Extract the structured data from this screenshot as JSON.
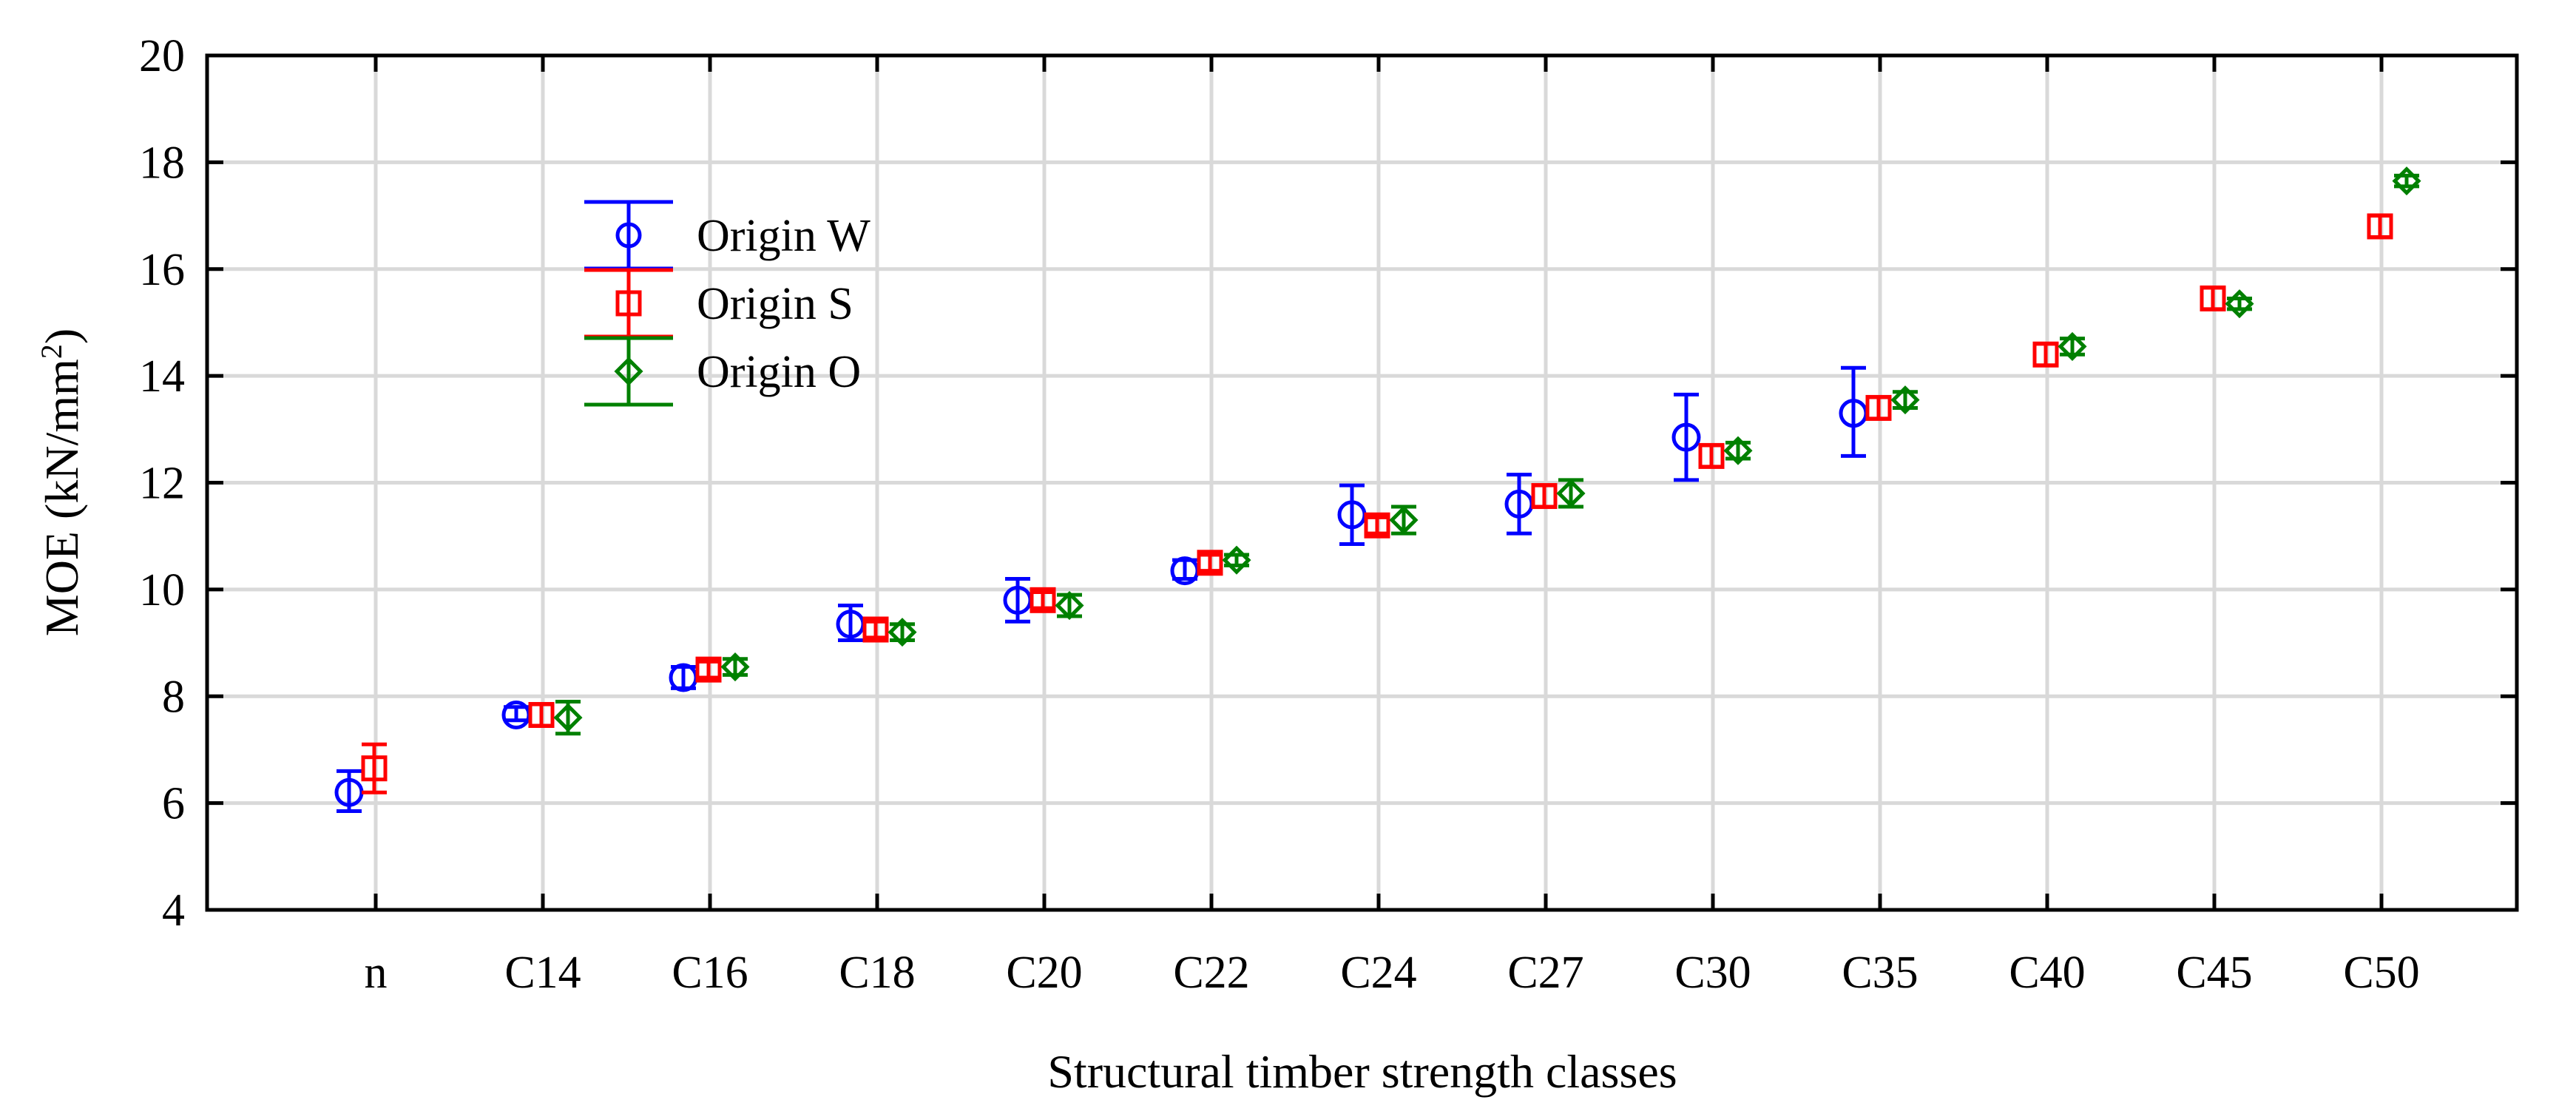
{
  "chart_data": {
    "type": "scatter",
    "subtype": "mean-with-error-bars",
    "xlabel": "Structural timber strength classes",
    "ylabel": "MOE (kN/mm",
    "ylabel_sup": "2",
    "ylabel_end": ")",
    "ylim": [
      4,
      20
    ],
    "yticks": [
      4,
      6,
      8,
      10,
      12,
      14,
      16,
      18,
      20
    ],
    "grid": true,
    "legend_position": "top-left",
    "categories": [
      "n",
      "C14",
      "C16",
      "C18",
      "C20",
      "C22",
      "C24",
      "C27",
      "C30",
      "C35",
      "C40",
      "C45",
      "C50"
    ],
    "series": [
      {
        "name": "Origin W",
        "color": "#0000ff",
        "marker": "circle",
        "values": [
          6.2,
          7.65,
          8.35,
          9.35,
          9.8,
          10.35,
          11.4,
          11.6,
          12.85,
          13.3,
          null,
          null,
          null
        ],
        "lower": [
          5.85,
          7.55,
          8.15,
          9.05,
          9.4,
          10.2,
          10.85,
          11.05,
          12.05,
          12.5,
          null,
          null,
          null
        ],
        "upper": [
          6.6,
          7.8,
          8.55,
          9.7,
          10.2,
          10.55,
          11.95,
          12.15,
          13.65,
          14.15,
          null,
          null,
          null
        ]
      },
      {
        "name": "Origin S",
        "color": "#ff0000",
        "marker": "square",
        "values": [
          6.65,
          7.65,
          8.5,
          9.25,
          9.8,
          10.5,
          11.2,
          11.75,
          12.5,
          13.4,
          14.4,
          15.45,
          16.8
        ],
        "lower": [
          6.2,
          7.45,
          8.35,
          9.1,
          9.65,
          10.35,
          11.05,
          11.55,
          12.3,
          13.2,
          14.2,
          15.25,
          16.6
        ],
        "upper": [
          7.1,
          7.85,
          8.65,
          9.4,
          9.95,
          10.65,
          11.35,
          11.95,
          12.7,
          13.6,
          14.6,
          15.65,
          17.0
        ]
      },
      {
        "name": "Origin O",
        "color": "#008000",
        "marker": "diamond",
        "values": [
          null,
          7.6,
          8.55,
          9.2,
          9.7,
          10.55,
          11.3,
          11.8,
          12.6,
          13.55,
          14.55,
          15.35,
          17.65
        ],
        "lower": [
          null,
          7.3,
          8.4,
          9.05,
          9.5,
          10.45,
          11.05,
          11.55,
          12.45,
          13.4,
          14.4,
          15.25,
          17.55
        ],
        "upper": [
          null,
          7.9,
          8.7,
          9.35,
          9.9,
          10.65,
          11.55,
          12.05,
          12.75,
          13.7,
          14.7,
          15.45,
          17.75
        ]
      }
    ]
  }
}
